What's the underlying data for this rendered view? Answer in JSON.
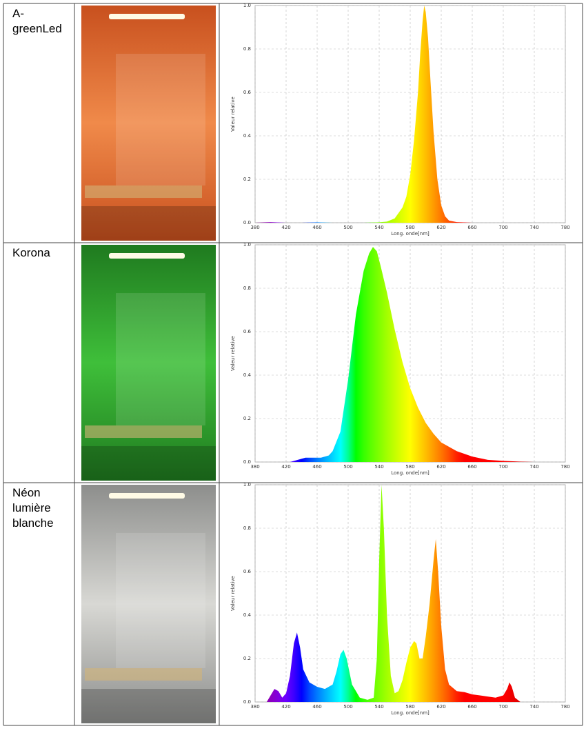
{
  "table": {
    "rows": [
      {
        "label": "A-greenLed",
        "chart": {
          "type": "area",
          "xlabel": "Long. onde[nm]",
          "ylabel": "Valeur relative",
          "xlim": [
            380,
            780
          ],
          "xticks": [
            380,
            420,
            460,
            500,
            540,
            580,
            620,
            660,
            700,
            740,
            780
          ],
          "ylim": [
            0,
            1
          ],
          "yticks": [
            {
              "value": 0,
              "label": "0.0"
            },
            0.2,
            0.4,
            0.6,
            0.8,
            {
              "value": 1,
              "label": "1.0"
            }
          ],
          "grid": true,
          "x": [
            380,
            400,
            420,
            440,
            460,
            480,
            500,
            520,
            540,
            550,
            560,
            570,
            575,
            580,
            585,
            590,
            593,
            596,
            598,
            600,
            603,
            606,
            610,
            615,
            620,
            625,
            630,
            640,
            660,
            700,
            740,
            780
          ],
          "values": [
            0,
            0.003,
            0,
            0,
            0.002,
            0,
            0,
            0,
            0.002,
            0.005,
            0.02,
            0.07,
            0.12,
            0.22,
            0.38,
            0.6,
            0.78,
            0.93,
            1.0,
            0.97,
            0.85,
            0.66,
            0.42,
            0.2,
            0.08,
            0.03,
            0.01,
            0.003,
            0,
            0,
            0,
            0
          ]
        }
      },
      {
        "label": "Korona",
        "chart": {
          "type": "area",
          "xlabel": "Long. onde[nm]",
          "ylabel": "Valeur relative",
          "xlim": [
            380,
            780
          ],
          "xticks": [
            380,
            420,
            460,
            500,
            540,
            580,
            620,
            660,
            700,
            740,
            780
          ],
          "ylim": [
            0,
            1
          ],
          "yticks": [
            {
              "value": 0,
              "label": "0.0"
            },
            0.2,
            0.4,
            0.6,
            0.8,
            {
              "value": 1,
              "label": "1.0"
            }
          ],
          "grid": true,
          "x": [
            425,
            435,
            445,
            455,
            465,
            475,
            480,
            490,
            500,
            510,
            520,
            527,
            532,
            537,
            542,
            550,
            560,
            570,
            580,
            590,
            600,
            610,
            620,
            640,
            660,
            680,
            700,
            720,
            740
          ],
          "values": [
            0,
            0.01,
            0.02,
            0.02,
            0.02,
            0.03,
            0.05,
            0.14,
            0.38,
            0.68,
            0.88,
            0.96,
            0.99,
            0.97,
            0.9,
            0.78,
            0.61,
            0.46,
            0.34,
            0.25,
            0.18,
            0.13,
            0.09,
            0.05,
            0.025,
            0.01,
            0.005,
            0.002,
            0
          ]
        }
      },
      {
        "label": "Néon lumière blanche",
        "chart": {
          "type": "area",
          "xlabel": "Long. onde[nm]",
          "ylabel": "Valeur relative",
          "xlim": [
            380,
            780
          ],
          "xticks": [
            380,
            420,
            460,
            500,
            540,
            580,
            620,
            660,
            700,
            740,
            780
          ],
          "ylim": [
            0,
            1
          ],
          "yticks": [
            {
              "value": 0,
              "label": "0.0"
            },
            0.2,
            0.4,
            0.6,
            0.8,
            {
              "value": 1,
              "label": "1.0"
            }
          ],
          "grid": true,
          "x": [
            395,
            400,
            405,
            410,
            415,
            420,
            425,
            430,
            434,
            438,
            442,
            450,
            460,
            470,
            480,
            485,
            490,
            494,
            498,
            505,
            515,
            525,
            533,
            537,
            540,
            543,
            546,
            550,
            555,
            560,
            565,
            570,
            575,
            580,
            585,
            588,
            592,
            596,
            600,
            605,
            610,
            613,
            616,
            620,
            625,
            630,
            640,
            650,
            660,
            670,
            680,
            690,
            700,
            705,
            708,
            711,
            715,
            722
          ],
          "values": [
            0,
            0.03,
            0.06,
            0.05,
            0.02,
            0.04,
            0.12,
            0.27,
            0.32,
            0.25,
            0.15,
            0.09,
            0.07,
            0.06,
            0.08,
            0.14,
            0.22,
            0.24,
            0.2,
            0.08,
            0.02,
            0.01,
            0.02,
            0.2,
            0.65,
            1.0,
            0.8,
            0.4,
            0.12,
            0.04,
            0.05,
            0.1,
            0.18,
            0.25,
            0.28,
            0.27,
            0.2,
            0.2,
            0.3,
            0.45,
            0.65,
            0.75,
            0.6,
            0.35,
            0.15,
            0.08,
            0.05,
            0.045,
            0.035,
            0.03,
            0.025,
            0.02,
            0.03,
            0.06,
            0.09,
            0.07,
            0.02,
            0
          ]
        }
      }
    ]
  }
}
